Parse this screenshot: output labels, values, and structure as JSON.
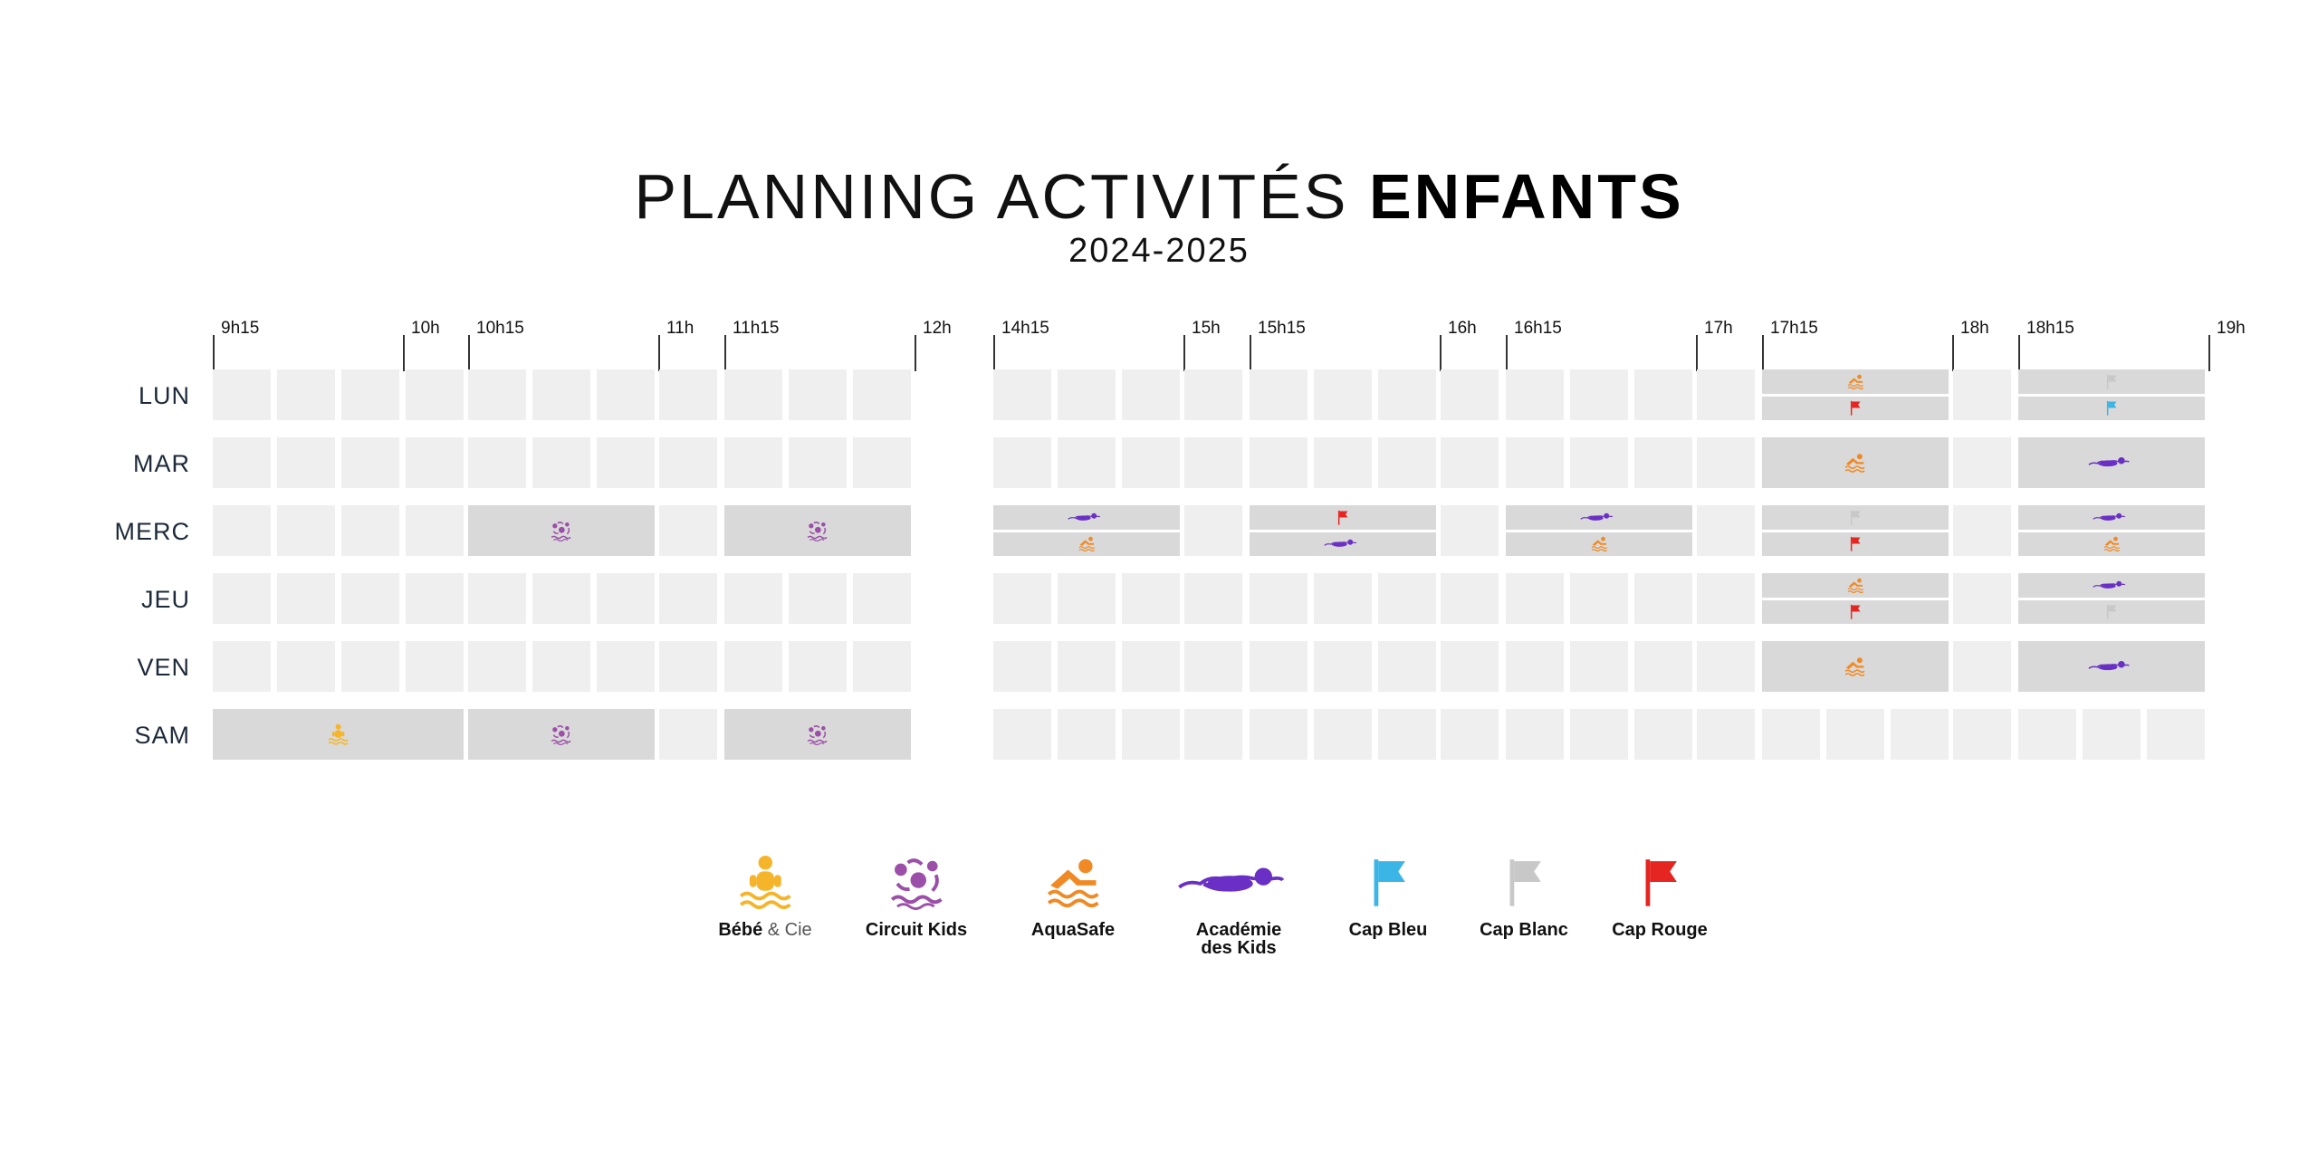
{
  "title": {
    "light": "PLANNING ACTIVITÉS",
    "bold": "ENFANTS"
  },
  "subtitle": "2024-2025",
  "colors": {
    "empty_cell": "#efefef",
    "activity_cell": "#d9d9d9",
    "bebe": "#f5b52a",
    "circuit": "#9b4fa8",
    "aquasafe": "#ef8a25",
    "academie": "#6a2fc4",
    "cap_bleu": "#3bb4e6",
    "cap_blanc": "#c8c8c8",
    "cap_rouge": "#e52521"
  },
  "time_labels": [
    "9h15",
    "10h",
    "10h15",
    "11h",
    "11h15",
    "12h",
    "14h15",
    "15h",
    "15h15",
    "16h",
    "16h15",
    "17h",
    "17h15",
    "18h",
    "18h15",
    "19h"
  ],
  "days": [
    "LUN",
    "MAR",
    "MERC",
    "JEU",
    "VEN",
    "SAM"
  ],
  "schedule": [
    [
      [
        "empty",
        0,
        0
      ],
      [
        "empty",
        0,
        1
      ],
      [
        "empty",
        0,
        2
      ],
      [
        "empty",
        0,
        3
      ],
      [
        "empty",
        1,
        0
      ],
      [
        "empty",
        1,
        1
      ],
      [
        "empty",
        1,
        2
      ],
      [
        "empty",
        2,
        0
      ],
      [
        "empty",
        3,
        0
      ],
      [
        "empty",
        3,
        1
      ],
      [
        "empty",
        3,
        2
      ],
      [
        "empty",
        4,
        0
      ],
      [
        "empty",
        4,
        1
      ],
      [
        "empty",
        4,
        2
      ],
      [
        "empty",
        5,
        0
      ],
      [
        "empty",
        6,
        0
      ],
      [
        "empty",
        6,
        1
      ],
      [
        "empty",
        6,
        2
      ],
      [
        "empty",
        7,
        0
      ],
      [
        "empty",
        8,
        0
      ],
      [
        "empty",
        8,
        1
      ],
      [
        "empty",
        8,
        2
      ],
      [
        "empty",
        9,
        0
      ],
      [
        "stack",
        10,
        [
          "aquasafe",
          "cap_rouge"
        ]
      ],
      [
        "empty",
        11,
        0
      ],
      [
        "stack",
        12,
        [
          "cap_blanc",
          "cap_bleu"
        ]
      ]
    ],
    [
      [
        "empty",
        0,
        0
      ],
      [
        "empty",
        0,
        1
      ],
      [
        "empty",
        0,
        2
      ],
      [
        "empty",
        0,
        3
      ],
      [
        "empty",
        1,
        0
      ],
      [
        "empty",
        1,
        1
      ],
      [
        "empty",
        1,
        2
      ],
      [
        "empty",
        2,
        0
      ],
      [
        "empty",
        3,
        0
      ],
      [
        "empty",
        3,
        1
      ],
      [
        "empty",
        3,
        2
      ],
      [
        "empty",
        4,
        0
      ],
      [
        "empty",
        4,
        1
      ],
      [
        "empty",
        4,
        2
      ],
      [
        "empty",
        5,
        0
      ],
      [
        "empty",
        6,
        0
      ],
      [
        "empty",
        6,
        1
      ],
      [
        "empty",
        6,
        2
      ],
      [
        "empty",
        7,
        0
      ],
      [
        "empty",
        8,
        0
      ],
      [
        "empty",
        8,
        1
      ],
      [
        "empty",
        8,
        2
      ],
      [
        "empty",
        9,
        0
      ],
      [
        "single",
        10,
        "aquasafe"
      ],
      [
        "empty",
        11,
        0
      ],
      [
        "single",
        12,
        "academie"
      ]
    ],
    [
      [
        "empty",
        0,
        0
      ],
      [
        "empty",
        0,
        1
      ],
      [
        "empty",
        0,
        2
      ],
      [
        "empty",
        0,
        3
      ],
      [
        "single",
        1,
        "circuit"
      ],
      [
        "empty",
        2,
        0
      ],
      [
        "single",
        3,
        "circuit"
      ],
      [
        "stack",
        4,
        [
          "academie",
          "aquasafe"
        ]
      ],
      [
        "empty",
        5,
        0
      ],
      [
        "stack",
        6,
        [
          "cap_rouge",
          "academie"
        ]
      ],
      [
        "empty",
        7,
        0
      ],
      [
        "stack",
        8,
        [
          "academie",
          "aquasafe"
        ]
      ],
      [
        "empty",
        9,
        0
      ],
      [
        "stack",
        10,
        [
          "cap_blanc",
          "cap_rouge"
        ]
      ],
      [
        "empty",
        11,
        0
      ],
      [
        "stack",
        12,
        [
          "academie",
          "aquasafe"
        ]
      ]
    ],
    [
      [
        "empty",
        0,
        0
      ],
      [
        "empty",
        0,
        1
      ],
      [
        "empty",
        0,
        2
      ],
      [
        "empty",
        0,
        3
      ],
      [
        "empty",
        1,
        0
      ],
      [
        "empty",
        1,
        1
      ],
      [
        "empty",
        1,
        2
      ],
      [
        "empty",
        2,
        0
      ],
      [
        "empty",
        3,
        0
      ],
      [
        "empty",
        3,
        1
      ],
      [
        "empty",
        3,
        2
      ],
      [
        "empty",
        4,
        0
      ],
      [
        "empty",
        4,
        1
      ],
      [
        "empty",
        4,
        2
      ],
      [
        "empty",
        5,
        0
      ],
      [
        "empty",
        6,
        0
      ],
      [
        "empty",
        6,
        1
      ],
      [
        "empty",
        6,
        2
      ],
      [
        "empty",
        7,
        0
      ],
      [
        "empty",
        8,
        0
      ],
      [
        "empty",
        8,
        1
      ],
      [
        "empty",
        8,
        2
      ],
      [
        "empty",
        9,
        0
      ],
      [
        "stack",
        10,
        [
          "aquasafe",
          "cap_rouge"
        ]
      ],
      [
        "empty",
        11,
        0
      ],
      [
        "stack",
        12,
        [
          "academie",
          "cap_blanc"
        ]
      ]
    ],
    [
      [
        "empty",
        0,
        0
      ],
      [
        "empty",
        0,
        1
      ],
      [
        "empty",
        0,
        2
      ],
      [
        "empty",
        0,
        3
      ],
      [
        "empty",
        1,
        0
      ],
      [
        "empty",
        1,
        1
      ],
      [
        "empty",
        1,
        2
      ],
      [
        "empty",
        2,
        0
      ],
      [
        "empty",
        3,
        0
      ],
      [
        "empty",
        3,
        1
      ],
      [
        "empty",
        3,
        2
      ],
      [
        "empty",
        4,
        0
      ],
      [
        "empty",
        4,
        1
      ],
      [
        "empty",
        4,
        2
      ],
      [
        "empty",
        5,
        0
      ],
      [
        "empty",
        6,
        0
      ],
      [
        "empty",
        6,
        1
      ],
      [
        "empty",
        6,
        2
      ],
      [
        "empty",
        7,
        0
      ],
      [
        "empty",
        8,
        0
      ],
      [
        "empty",
        8,
        1
      ],
      [
        "empty",
        8,
        2
      ],
      [
        "empty",
        9,
        0
      ],
      [
        "single",
        10,
        "aquasafe"
      ],
      [
        "empty",
        11,
        0
      ],
      [
        "single",
        12,
        "academie"
      ]
    ],
    [
      [
        "single",
        0,
        "bebe"
      ],
      [
        "single",
        1,
        "circuit"
      ],
      [
        "empty",
        2,
        0
      ],
      [
        "single",
        3,
        "circuit"
      ],
      [
        "empty",
        4,
        0
      ],
      [
        "empty",
        4,
        1
      ],
      [
        "empty",
        4,
        2
      ],
      [
        "empty",
        5,
        0
      ],
      [
        "empty",
        6,
        0
      ],
      [
        "empty",
        6,
        1
      ],
      [
        "empty",
        6,
        2
      ],
      [
        "empty",
        7,
        0
      ],
      [
        "empty",
        8,
        0
      ],
      [
        "empty",
        8,
        1
      ],
      [
        "empty",
        8,
        2
      ],
      [
        "empty",
        9,
        0
      ],
      [
        "empty",
        10,
        0
      ],
      [
        "empty",
        10,
        1
      ],
      [
        "empty",
        10,
        2
      ],
      [
        "empty",
        11,
        0
      ],
      [
        "empty",
        12,
        0
      ],
      [
        "empty",
        12,
        1
      ],
      [
        "empty",
        12,
        2
      ]
    ]
  ],
  "legend": [
    {
      "icon": "bebe",
      "name": "Bébé",
      "suffix": " & Cie"
    },
    {
      "icon": "circuit",
      "name": "Circuit Kids"
    },
    {
      "icon": "aquasafe",
      "name": "AquaSafe"
    },
    {
      "icon": "academie",
      "name": "Académie",
      "line2": "des Kids"
    },
    {
      "icon": "cap_bleu",
      "name": "Cap Bleu"
    },
    {
      "icon": "cap_blanc",
      "name": "Cap Blanc"
    },
    {
      "icon": "cap_rouge",
      "name": "Cap Rouge"
    }
  ]
}
